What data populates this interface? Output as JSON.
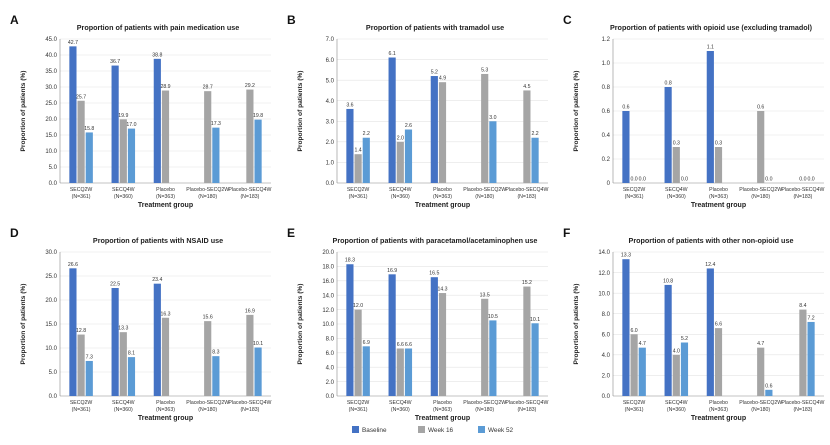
{
  "legend": [
    {
      "name": "Baseline",
      "color": "#4472c4"
    },
    {
      "name": "Week 16",
      "color": "#a5a5a5"
    },
    {
      "name": "Week 52",
      "color": "#5b9bd5"
    }
  ],
  "chart_data": [
    {
      "type": "bar",
      "panel": "A",
      "title": "Proportion of patients with pain medication use",
      "xlabel": "Treatment group",
      "ylabel": "Proportion of patients (%)",
      "ylim": [
        0,
        45
      ],
      "yticks": [
        "0.0",
        "5.0",
        "10.0",
        "15.0",
        "20.0",
        "25.0",
        "30.0",
        "35.0",
        "40.0",
        "45.0"
      ],
      "categories": [
        "SECQ2W",
        "SECQ4W",
        "Placebo",
        "Placebo-SECQ2W",
        "Placebo-SECQ4W"
      ],
      "category_n": [
        "(N=361)",
        "(N=360)",
        "(N=363)",
        "(N=180)",
        "(N=183)"
      ],
      "series": [
        {
          "name": "Baseline",
          "values": [
            42.7,
            36.7,
            38.8,
            null,
            null
          ]
        },
        {
          "name": "Week 16",
          "values": [
            25.7,
            19.9,
            28.9,
            28.7,
            29.2
          ]
        },
        {
          "name": "Week 52",
          "values": [
            15.8,
            17.0,
            null,
            17.3,
            19.8
          ]
        }
      ]
    },
    {
      "type": "bar",
      "panel": "B",
      "title": "Proportion of patients with tramadol use",
      "xlabel": "Treatment group",
      "ylabel": "Proportion of patients (%)",
      "ylim": [
        0,
        7
      ],
      "yticks": [
        "0.0",
        "1.0",
        "2.0",
        "3.0",
        "4.0",
        "5.0",
        "6.0",
        "7.0"
      ],
      "categories": [
        "SECQ2W",
        "SECQ4W",
        "Placebo",
        "Placebo-SECQ2W",
        "Placebo-SECQ4W"
      ],
      "category_n": [
        "(N=361)",
        "(N=360)",
        "(N=363)",
        "(N=180)",
        "(N=183)"
      ],
      "series": [
        {
          "name": "Baseline",
          "values": [
            3.6,
            6.1,
            5.2,
            null,
            null
          ]
        },
        {
          "name": "Week 16",
          "values": [
            1.4,
            2.0,
            4.9,
            5.3,
            4.5
          ]
        },
        {
          "name": "Week 52",
          "values": [
            2.2,
            2.6,
            null,
            3.0,
            2.2
          ]
        }
      ]
    },
    {
      "type": "bar",
      "panel": "C",
      "title": "Proportion of patients with opioid use (excluding tramadol)",
      "xlabel": "Treatment group",
      "ylabel": "Proportion of patients (%)",
      "ylim": [
        0,
        1.2
      ],
      "yticks": [
        "0",
        "0.2",
        "0.4",
        "0.6",
        "0.8",
        "1.0",
        "1.2"
      ],
      "categories": [
        "SECQ2W",
        "SECQ4W",
        "Placebo",
        "Placebo-SECQ2W",
        "Placebo-SECQ4W"
      ],
      "category_n": [
        "(N=361)",
        "(N=360)",
        "(N=363)",
        "(N=180)",
        "(N=183)"
      ],
      "series": [
        {
          "name": "Baseline",
          "values": [
            0.6,
            0.8,
            1.1,
            null,
            null
          ]
        },
        {
          "name": "Week 16",
          "values": [
            0.0,
            0.3,
            0.3,
            0.6,
            0.0
          ]
        },
        {
          "name": "Week 52",
          "values": [
            0.0,
            0.0,
            null,
            0.0,
            0.0
          ]
        }
      ]
    },
    {
      "type": "bar",
      "panel": "D",
      "title": "Proportion of patients with NSAID use",
      "xlabel": "Treatment group",
      "ylabel": "Proportion of patients (%)",
      "ylim": [
        0,
        30
      ],
      "yticks": [
        "0.0",
        "5.0",
        "10.0",
        "15.0",
        "20.0",
        "25.0",
        "30.0"
      ],
      "categories": [
        "SECQ2W",
        "SECQ4W",
        "Placebo",
        "Placebo-SECQ2W",
        "Placebo-SECQ4W"
      ],
      "category_n": [
        "(N=361)",
        "(N=360)",
        "(N=363)",
        "(N=180)",
        "(N=183)"
      ],
      "series": [
        {
          "name": "Baseline",
          "values": [
            26.6,
            22.5,
            23.4,
            null,
            null
          ]
        },
        {
          "name": "Week 16",
          "values": [
            12.8,
            13.3,
            16.3,
            15.6,
            16.9
          ]
        },
        {
          "name": "Week 52",
          "values": [
            7.3,
            8.1,
            null,
            8.3,
            10.1
          ]
        }
      ]
    },
    {
      "type": "bar",
      "panel": "E",
      "title": "Proportion of patients with paracetamol/acetaminophen use",
      "xlabel": "Treatment group",
      "ylabel": "Proportion of patients (%)",
      "ylim": [
        0,
        20
      ],
      "yticks": [
        "0.0",
        "2.0",
        "4.0",
        "6.0",
        "8.0",
        "10.0",
        "12.0",
        "14.0",
        "16.0",
        "18.0",
        "20.0"
      ],
      "categories": [
        "SECQ2W",
        "SECQ4W",
        "Placebo",
        "Placebo-SECQ2W",
        "Placebo-SECQ4W"
      ],
      "category_n": [
        "(N=361)",
        "(N=360)",
        "(N=363)",
        "(N=180)",
        "(N=183)"
      ],
      "series": [
        {
          "name": "Baseline",
          "values": [
            18.3,
            16.9,
            16.5,
            null,
            null
          ]
        },
        {
          "name": "Week 16",
          "values": [
            12.0,
            6.6,
            14.3,
            13.5,
            15.2
          ]
        },
        {
          "name": "Week 52",
          "values": [
            6.9,
            6.6,
            null,
            10.5,
            10.1
          ]
        }
      ]
    },
    {
      "type": "bar",
      "panel": "F",
      "title": "Proportion of patients with other non-opioid use",
      "xlabel": "Treatment group",
      "ylabel": "Proportion of patients (%)",
      "ylim": [
        0,
        14
      ],
      "yticks": [
        "0.0",
        "2.0",
        "4.0",
        "6.0",
        "8.0",
        "10.0",
        "12.0",
        "14.0"
      ],
      "categories": [
        "SECQ2W",
        "SECQ4W",
        "Placebo",
        "Placebo-SECQ2W",
        "Placebo-SECQ4W"
      ],
      "category_n": [
        "(N=361)",
        "(N=360)",
        "(N=363)",
        "(N=180)",
        "(N=183)"
      ],
      "series": [
        {
          "name": "Baseline",
          "values": [
            13.3,
            10.8,
            12.4,
            null,
            null
          ]
        },
        {
          "name": "Week 16",
          "values": [
            6.0,
            4.0,
            6.6,
            4.7,
            8.4
          ]
        },
        {
          "name": "Week 52",
          "values": [
            4.7,
            5.2,
            null,
            0.6,
            7.2
          ]
        }
      ]
    }
  ]
}
